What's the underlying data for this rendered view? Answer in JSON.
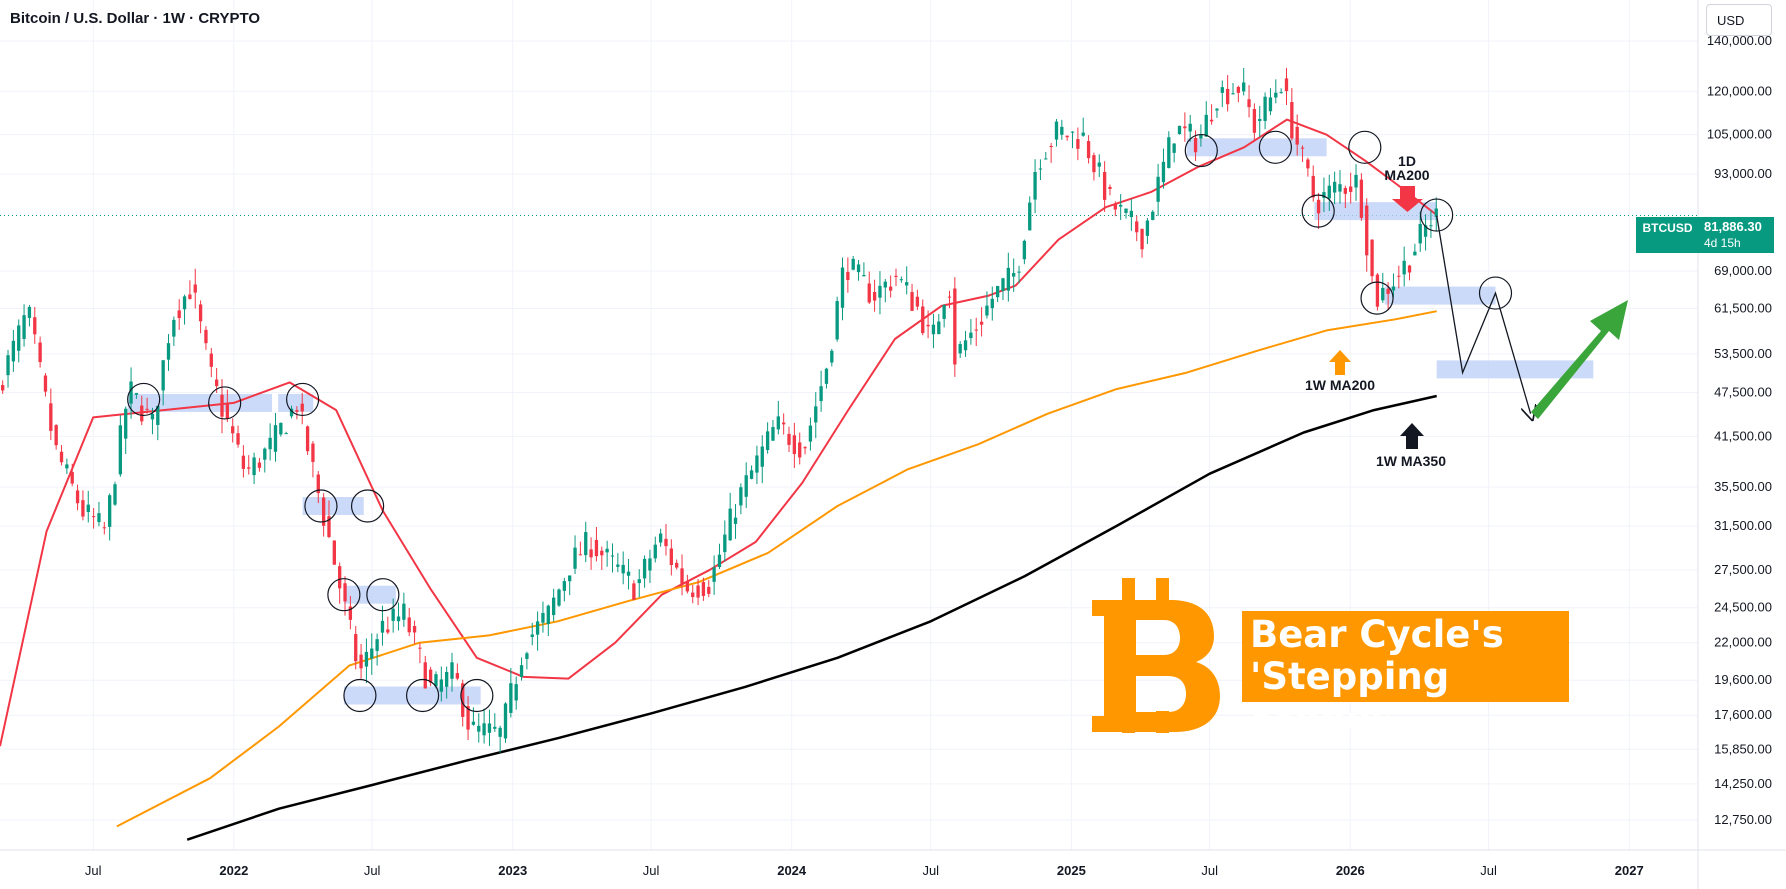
{
  "header": {
    "title": "Bitcoin / U.S. Dollar · 1W · CRYPTO",
    "currency": "USD"
  },
  "price_label": {
    "symbol": "BTCUSD",
    "price": "81,886.30",
    "countdown": "4d 15h"
  },
  "annotations": {
    "ma1d": [
      "1D",
      "MA200"
    ],
    "ma1w200": "1W MA200",
    "ma1w350": "1W MA350",
    "callout_line1": "Bear Cycle's",
    "callout_line2": "'Stepping Stones'"
  },
  "colors": {
    "up": "#089981",
    "down": "#f23645",
    "ma1d": "#f23645",
    "ma200w": "#ff9800",
    "ma350w": "#000000",
    "zone": "#bbcdf7",
    "arrow_green": "#3aa53a",
    "bitcoin": "#ff9800"
  },
  "chart_data": {
    "type": "candlestick",
    "title": "Bitcoin / U.S. Dollar · 1W · CRYPTO",
    "yscale": "log",
    "ylim": [
      12000,
      150000
    ],
    "xlim": [
      "2021-03-01",
      "2027-04-01"
    ],
    "y_ticks": [
      140000,
      120000,
      105000,
      93000,
      81886.3,
      69000,
      61500,
      53500,
      47500,
      41500,
      35500,
      31500,
      27500,
      24500,
      22000,
      19600,
      17600,
      15850,
      14250,
      12750
    ],
    "y_tick_labels": [
      "140,000.00",
      "120,000.00",
      "105,000.00",
      "93,000.00",
      "81,886.30",
      "69,000.00",
      "61,500.00",
      "53,500.00",
      "47,500.00",
      "41,500.00",
      "35,500.00",
      "31,500.00",
      "27,500.00",
      "24,500.00",
      "22,000.00",
      "19,600.00",
      "17,600.00",
      "15,850.00",
      "14,250.00",
      "12,750.00"
    ],
    "x_ticks": [
      {
        "date": "2021-07-01",
        "label": "Jul",
        "bold": false
      },
      {
        "date": "2022-01-01",
        "label": "2022",
        "bold": true
      },
      {
        "date": "2022-07-01",
        "label": "Jul",
        "bold": false
      },
      {
        "date": "2023-01-01",
        "label": "2023",
        "bold": true
      },
      {
        "date": "2023-07-01",
        "label": "Jul",
        "bold": false
      },
      {
        "date": "2024-01-01",
        "label": "2024",
        "bold": true
      },
      {
        "date": "2024-07-01",
        "label": "Jul",
        "bold": false
      },
      {
        "date": "2025-01-01",
        "label": "2025",
        "bold": true
      },
      {
        "date": "2025-07-01",
        "label": "Jul",
        "bold": false
      },
      {
        "date": "2026-01-01",
        "label": "2026",
        "bold": true
      },
      {
        "date": "2026-07-01",
        "label": "Jul",
        "bold": false
      },
      {
        "date": "2027-01-01",
        "label": "2027",
        "bold": true
      }
    ],
    "price_path": [
      [
        "2021-03-01",
        48000
      ],
      [
        "2021-04-10",
        61000
      ],
      [
        "2021-05-15",
        40000
      ],
      [
        "2021-06-20",
        33000
      ],
      [
        "2021-07-20",
        31000
      ],
      [
        "2021-08-20",
        48000
      ],
      [
        "2021-09-20",
        43000
      ],
      [
        "2021-10-15",
        60000
      ],
      [
        "2021-11-10",
        66000
      ],
      [
        "2021-12-05",
        50000
      ],
      [
        "2022-01-20",
        37000
      ],
      [
        "2022-02-20",
        40000
      ],
      [
        "2022-03-28",
        46000
      ],
      [
        "2022-05-10",
        30000
      ],
      [
        "2022-06-18",
        20000
      ],
      [
        "2022-07-15",
        23000
      ],
      [
        "2022-08-15",
        24000
      ],
      [
        "2022-09-20",
        19000
      ],
      [
        "2022-10-20",
        20000
      ],
      [
        "2022-11-10",
        16800
      ],
      [
        "2022-12-20",
        16600
      ],
      [
        "2023-01-20",
        22000
      ],
      [
        "2023-02-20",
        24000
      ],
      [
        "2023-03-20",
        28000
      ],
      [
        "2023-04-15",
        30000
      ],
      [
        "2023-06-15",
        26000
      ],
      [
        "2023-07-15",
        30500
      ],
      [
        "2023-08-20",
        26000
      ],
      [
        "2023-09-20",
        26500
      ],
      [
        "2023-10-25",
        34000
      ],
      [
        "2023-12-15",
        43000
      ],
      [
        "2024-01-20",
        40000
      ],
      [
        "2024-02-20",
        52000
      ],
      [
        "2024-03-14",
        71000
      ],
      [
        "2024-04-20",
        64000
      ],
      [
        "2024-05-20",
        68000
      ],
      [
        "2024-06-20",
        61000
      ],
      [
        "2024-07-05",
        55000
      ],
      [
        "2024-07-28",
        68000
      ],
      [
        "2024-08-05",
        53000
      ],
      [
        "2024-09-01",
        58000
      ],
      [
        "2024-09-25",
        64000
      ],
      [
        "2024-10-25",
        69000
      ],
      [
        "2024-11-20",
        97000
      ],
      [
        "2024-12-17",
        106000
      ],
      [
        "2025-01-20",
        104000
      ],
      [
        "2025-02-25",
        85000
      ],
      [
        "2025-04-08",
        77000
      ],
      [
        "2025-05-20",
        107000
      ],
      [
        "2025-06-20",
        103000
      ],
      [
        "2025-07-14",
        119000
      ],
      [
        "2025-08-14",
        122000
      ],
      [
        "2025-09-01",
        108000
      ],
      [
        "2025-10-06",
        124000
      ],
      [
        "2025-10-20",
        108000
      ],
      [
        "2025-11-20",
        85000
      ],
      [
        "2025-12-15",
        89000
      ],
      [
        "2026-01-15",
        91000
      ],
      [
        "2026-02-06",
        63000
      ],
      [
        "2026-03-01",
        67000
      ],
      [
        "2026-03-20",
        71000
      ],
      [
        "2026-04-10",
        78000
      ],
      [
        "2026-04-24",
        81886
      ]
    ],
    "series": [
      {
        "name": "1D MA200",
        "points": [
          [
            "2021-03-01",
            16000
          ],
          [
            "2021-05-01",
            31000
          ],
          [
            "2021-07-01",
            44000
          ],
          [
            "2021-10-01",
            45000
          ],
          [
            "2022-01-01",
            46000
          ],
          [
            "2022-03-15",
            49000
          ],
          [
            "2022-05-15",
            45000
          ],
          [
            "2022-07-15",
            33000
          ],
          [
            "2022-09-15",
            26000
          ],
          [
            "2022-11-15",
            21000
          ],
          [
            "2023-01-15",
            19800
          ],
          [
            "2023-03-15",
            19700
          ],
          [
            "2023-05-15",
            22000
          ],
          [
            "2023-07-15",
            25500
          ],
          [
            "2023-09-15",
            27500
          ],
          [
            "2023-11-15",
            30000
          ],
          [
            "2024-01-15",
            36000
          ],
          [
            "2024-03-15",
            45000
          ],
          [
            "2024-05-15",
            56000
          ],
          [
            "2024-07-15",
            62000
          ],
          [
            "2024-09-15",
            64000
          ],
          [
            "2024-10-20",
            66000
          ],
          [
            "2024-12-15",
            76000
          ],
          [
            "2025-02-15",
            84000
          ],
          [
            "2025-04-15",
            88000
          ],
          [
            "2025-06-15",
            95000
          ],
          [
            "2025-08-15",
            101000
          ],
          [
            "2025-10-10",
            110000
          ],
          [
            "2025-12-01",
            105000
          ],
          [
            "2026-01-20",
            97000
          ],
          [
            "2026-03-10",
            89000
          ],
          [
            "2026-04-24",
            82000
          ]
        ]
      },
      {
        "name": "1W MA200",
        "points": [
          [
            "2021-08-01",
            12500
          ],
          [
            "2021-12-01",
            14500
          ],
          [
            "2022-03-01",
            17000
          ],
          [
            "2022-06-01",
            20500
          ],
          [
            "2022-09-01",
            22000
          ],
          [
            "2022-12-01",
            22500
          ],
          [
            "2023-03-01",
            23500
          ],
          [
            "2023-06-01",
            25000
          ],
          [
            "2023-09-01",
            26500
          ],
          [
            "2023-12-01",
            29000
          ],
          [
            "2024-03-01",
            33500
          ],
          [
            "2024-06-01",
            37500
          ],
          [
            "2024-09-01",
            40500
          ],
          [
            "2024-12-01",
            44500
          ],
          [
            "2025-03-01",
            48000
          ],
          [
            "2025-06-01",
            50500
          ],
          [
            "2025-09-01",
            54000
          ],
          [
            "2025-12-01",
            57500
          ],
          [
            "2026-03-01",
            59500
          ],
          [
            "2026-04-24",
            61000
          ]
        ]
      },
      {
        "name": "1W MA350",
        "points": [
          [
            "2021-11-01",
            12000
          ],
          [
            "2022-03-01",
            13200
          ],
          [
            "2022-07-01",
            14200
          ],
          [
            "2022-11-01",
            15300
          ],
          [
            "2023-03-01",
            16400
          ],
          [
            "2023-07-01",
            17700
          ],
          [
            "2023-11-01",
            19200
          ],
          [
            "2024-03-01",
            21000
          ],
          [
            "2024-07-01",
            23500
          ],
          [
            "2024-11-01",
            27000
          ],
          [
            "2025-03-01",
            31500
          ],
          [
            "2025-07-01",
            37000
          ],
          [
            "2025-11-01",
            42000
          ],
          [
            "2026-02-01",
            45000
          ],
          [
            "2026-04-24",
            47000
          ]
        ]
      }
    ],
    "projection": [
      [
        "2026-04-24",
        81886
      ],
      [
        "2026-05-28",
        50500
      ],
      [
        "2026-07-10",
        64500
      ],
      [
        "2026-08-25",
        44500
      ]
    ],
    "zones": [
      {
        "x0": "2021-08-15",
        "x1": "2022-02-20",
        "y": 46000
      },
      {
        "x0": "2022-02-28",
        "x1": "2022-04-15",
        "y": 46000
      },
      {
        "x0": "2022-04-01",
        "x1": "2022-06-20",
        "y": 33500
      },
      {
        "x0": "2022-05-25",
        "x1": "2022-08-01",
        "y": 25500
      },
      {
        "x0": "2022-05-25",
        "x1": "2022-11-20",
        "y": 18700
      },
      {
        "x0": "2025-06-01",
        "x1": "2025-12-01",
        "y": 101000
      },
      {
        "x0": "2025-11-15",
        "x1": "2026-04-24",
        "y": 83000
      },
      {
        "x0": "2026-02-15",
        "x1": "2026-07-10",
        "y": 64000
      },
      {
        "x0": "2026-04-24",
        "x1": "2026-11-15",
        "y": 51000
      }
    ],
    "circles": [
      [
        "2021-09-05",
        46500
      ],
      [
        "2021-12-20",
        46000
      ],
      [
        "2022-04-01",
        46500
      ],
      [
        "2022-04-25",
        33500
      ],
      [
        "2022-06-25",
        33500
      ],
      [
        "2022-05-25",
        25500
      ],
      [
        "2022-07-15",
        25500
      ],
      [
        "2022-06-15",
        18700
      ],
      [
        "2022-09-05",
        18700
      ],
      [
        "2022-11-15",
        18700
      ],
      [
        "2025-06-20",
        100000
      ],
      [
        "2025-09-25",
        101000
      ],
      [
        "2025-11-20",
        83000
      ],
      [
        "2026-01-20",
        101000
      ],
      [
        "2026-02-05",
        63500
      ],
      [
        "2026-04-24",
        82000
      ],
      [
        "2026-07-10",
        64500
      ]
    ]
  }
}
